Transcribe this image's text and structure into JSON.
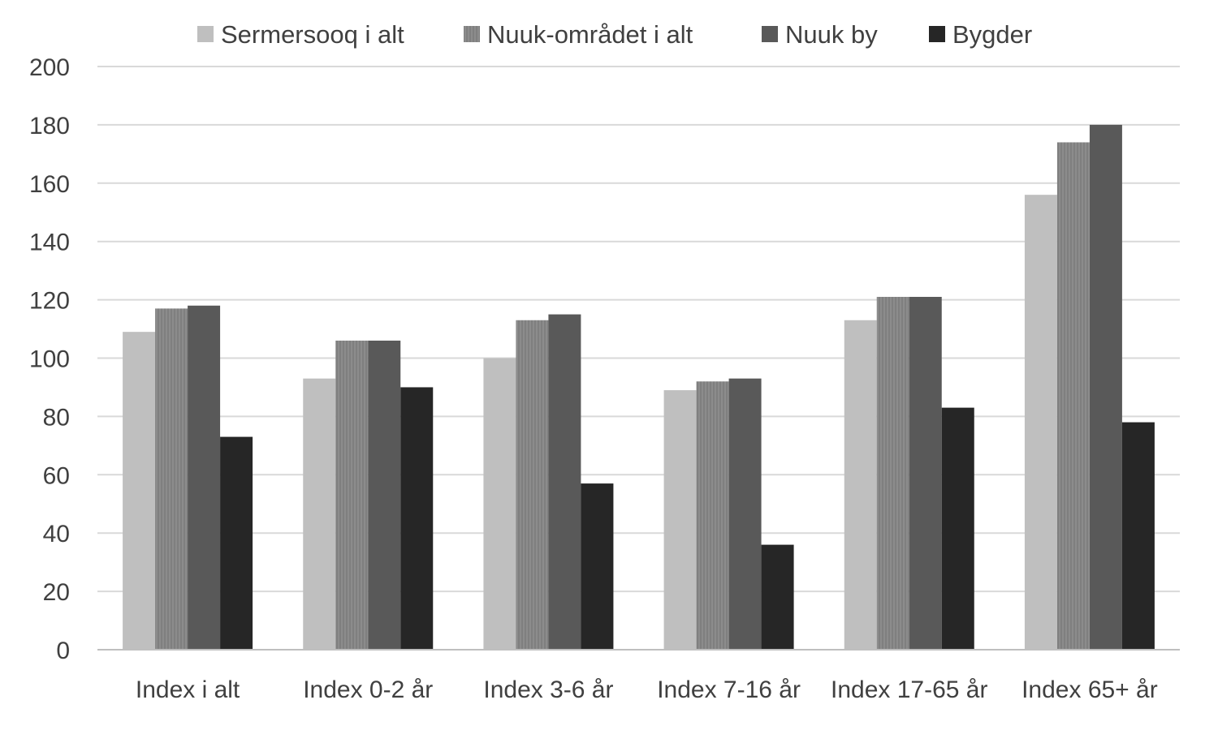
{
  "chart_data": {
    "type": "bar",
    "categories": [
      "Index i alt",
      "Index 0-2 år",
      "Index 3-6 år",
      "Index 7-16 år",
      "Index 17-65 år",
      "Index 65+ år"
    ],
    "series": [
      {
        "name": "Sermersooq i alt",
        "values": [
          109,
          93,
          100,
          89,
          113,
          156
        ],
        "color": "#bfbfbf"
      },
      {
        "name": "Nuuk-området i alt",
        "values": [
          117,
          106,
          113,
          92,
          121,
          174
        ],
        "color": "#7f7f7f"
      },
      {
        "name": "Nuuk by",
        "values": [
          118,
          106,
          115,
          93,
          121,
          180
        ],
        "color": "#595959"
      },
      {
        "name": "Bygder",
        "values": [
          73,
          90,
          57,
          36,
          83,
          78
        ],
        "color": "#262626"
      }
    ],
    "ylim": [
      0,
      200
    ],
    "yticks": [
      "0",
      "20",
      "40",
      "60",
      "80",
      "100",
      "120",
      "140",
      "160",
      "180",
      "200"
    ],
    "grid": true,
    "legend_position": "top-center",
    "title": "",
    "xlabel": "",
    "ylabel": ""
  }
}
